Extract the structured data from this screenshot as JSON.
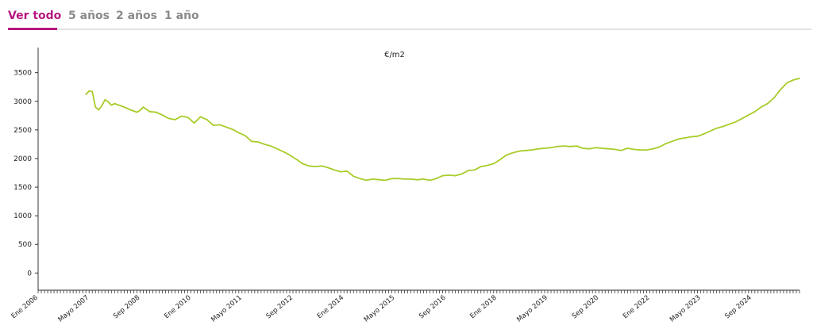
{
  "tabs": [
    {
      "label": "Ver todo",
      "active": true
    },
    {
      "label": "5 años",
      "active": false
    },
    {
      "label": "2 años",
      "active": false
    },
    {
      "label": "1 año",
      "active": false
    }
  ],
  "colors": {
    "accent": "#b5187e",
    "line": "#a8cc2a",
    "inactive_tab": "#8a8a8a"
  },
  "chart_data": {
    "type": "line",
    "title": "€/m2",
    "xlabel": "",
    "ylabel": "",
    "ylim": [
      -300,
      3800
    ],
    "yticks": [
      0,
      500,
      1000,
      1500,
      2000,
      2500,
      3000,
      3500
    ],
    "xlim": [
      "2006-01",
      "2025-12"
    ],
    "xticks": [
      {
        "label": "Ene 2006",
        "date": "2006-01"
      },
      {
        "label": "Mayo 2007",
        "date": "2007-05"
      },
      {
        "label": "Sep 2008",
        "date": "2008-09"
      },
      {
        "label": "Ene 2010",
        "date": "2010-01"
      },
      {
        "label": "Mayo 2011",
        "date": "2011-05"
      },
      {
        "label": "Sep 2012",
        "date": "2012-09"
      },
      {
        "label": "Ene 2014",
        "date": "2014-01"
      },
      {
        "label": "Mayo 2015",
        "date": "2015-05"
      },
      {
        "label": "Sep 2016",
        "date": "2016-09"
      },
      {
        "label": "Ene 2018",
        "date": "2018-01"
      },
      {
        "label": "Mayo 2019",
        "date": "2019-05"
      },
      {
        "label": "Sep 2020",
        "date": "2020-09"
      },
      {
        "label": "Ene 2022",
        "date": "2022-01"
      },
      {
        "label": "Mayo 2023",
        "date": "2023-05"
      },
      {
        "label": "Sep 2024",
        "date": "2024-09"
      }
    ],
    "grid": false,
    "legend": "none",
    "series": [
      {
        "x": [
          "2007-04",
          "2007-05",
          "2007-06",
          "2007-07",
          "2007-08",
          "2007-09",
          "2007-10",
          "2007-11",
          "2007-12",
          "2008-01",
          "2008-02",
          "2008-04",
          "2008-06",
          "2008-08",
          "2008-09",
          "2008-10",
          "2008-12",
          "2009-02",
          "2009-04",
          "2009-06",
          "2009-08",
          "2009-10",
          "2009-12",
          "2010-02",
          "2010-04",
          "2010-06",
          "2010-08",
          "2010-10",
          "2010-12",
          "2011-02",
          "2011-04",
          "2011-06",
          "2011-08",
          "2011-10",
          "2011-12",
          "2012-02",
          "2012-04",
          "2012-06",
          "2012-08",
          "2012-10",
          "2012-12",
          "2013-02",
          "2013-04",
          "2013-06",
          "2013-08",
          "2013-10",
          "2013-12",
          "2014-02",
          "2014-04",
          "2014-06",
          "2014-08",
          "2014-10",
          "2014-12",
          "2015-02",
          "2015-04",
          "2015-06",
          "2015-08",
          "2015-10",
          "2015-12",
          "2016-02",
          "2016-04",
          "2016-06",
          "2016-08",
          "2016-10",
          "2016-12",
          "2017-02",
          "2017-04",
          "2017-06",
          "2017-08",
          "2017-10",
          "2017-12",
          "2018-02",
          "2018-04",
          "2018-06",
          "2018-08",
          "2018-10",
          "2018-12",
          "2019-02",
          "2019-04",
          "2019-06",
          "2019-08",
          "2019-10",
          "2019-12",
          "2020-02",
          "2020-04",
          "2020-06",
          "2020-08",
          "2020-10",
          "2020-12",
          "2021-02",
          "2021-04",
          "2021-06",
          "2021-08",
          "2021-10",
          "2021-12",
          "2022-02",
          "2022-04",
          "2022-06",
          "2022-08",
          "2022-10",
          "2022-12",
          "2023-02",
          "2023-04",
          "2023-06",
          "2023-08",
          "2023-10",
          "2023-12",
          "2024-02",
          "2024-04",
          "2024-06",
          "2024-08",
          "2024-10",
          "2024-12",
          "2025-02",
          "2025-04",
          "2025-06",
          "2025-08",
          "2025-10",
          "2025-12"
        ],
        "values": [
          3120,
          3180,
          3170,
          2900,
          2850,
          2920,
          3030,
          2990,
          2930,
          2960,
          2940,
          2900,
          2850,
          2810,
          2840,
          2900,
          2820,
          2810,
          2760,
          2700,
          2680,
          2740,
          2720,
          2620,
          2730,
          2680,
          2580,
          2590,
          2550,
          2510,
          2450,
          2400,
          2300,
          2290,
          2250,
          2220,
          2170,
          2120,
          2060,
          1990,
          1910,
          1870,
          1860,
          1870,
          1840,
          1800,
          1770,
          1780,
          1690,
          1650,
          1620,
          1640,
          1630,
          1620,
          1650,
          1650,
          1640,
          1640,
          1630,
          1640,
          1620,
          1650,
          1700,
          1710,
          1700,
          1730,
          1790,
          1800,
          1860,
          1880,
          1910,
          1980,
          2060,
          2100,
          2130,
          2140,
          2150,
          2170,
          2180,
          2190,
          2210,
          2220,
          2210,
          2220,
          2180,
          2170,
          2190,
          2180,
          2170,
          2160,
          2140,
          2180,
          2160,
          2150,
          2150,
          2170,
          2200,
          2260,
          2300,
          2340,
          2360,
          2380,
          2390,
          2430,
          2480,
          2530,
          2560,
          2600,
          2640,
          2700,
          2760,
          2820,
          2900,
          2960,
          3060,
          3200,
          3320,
          3370,
          3400
        ]
      }
    ]
  }
}
